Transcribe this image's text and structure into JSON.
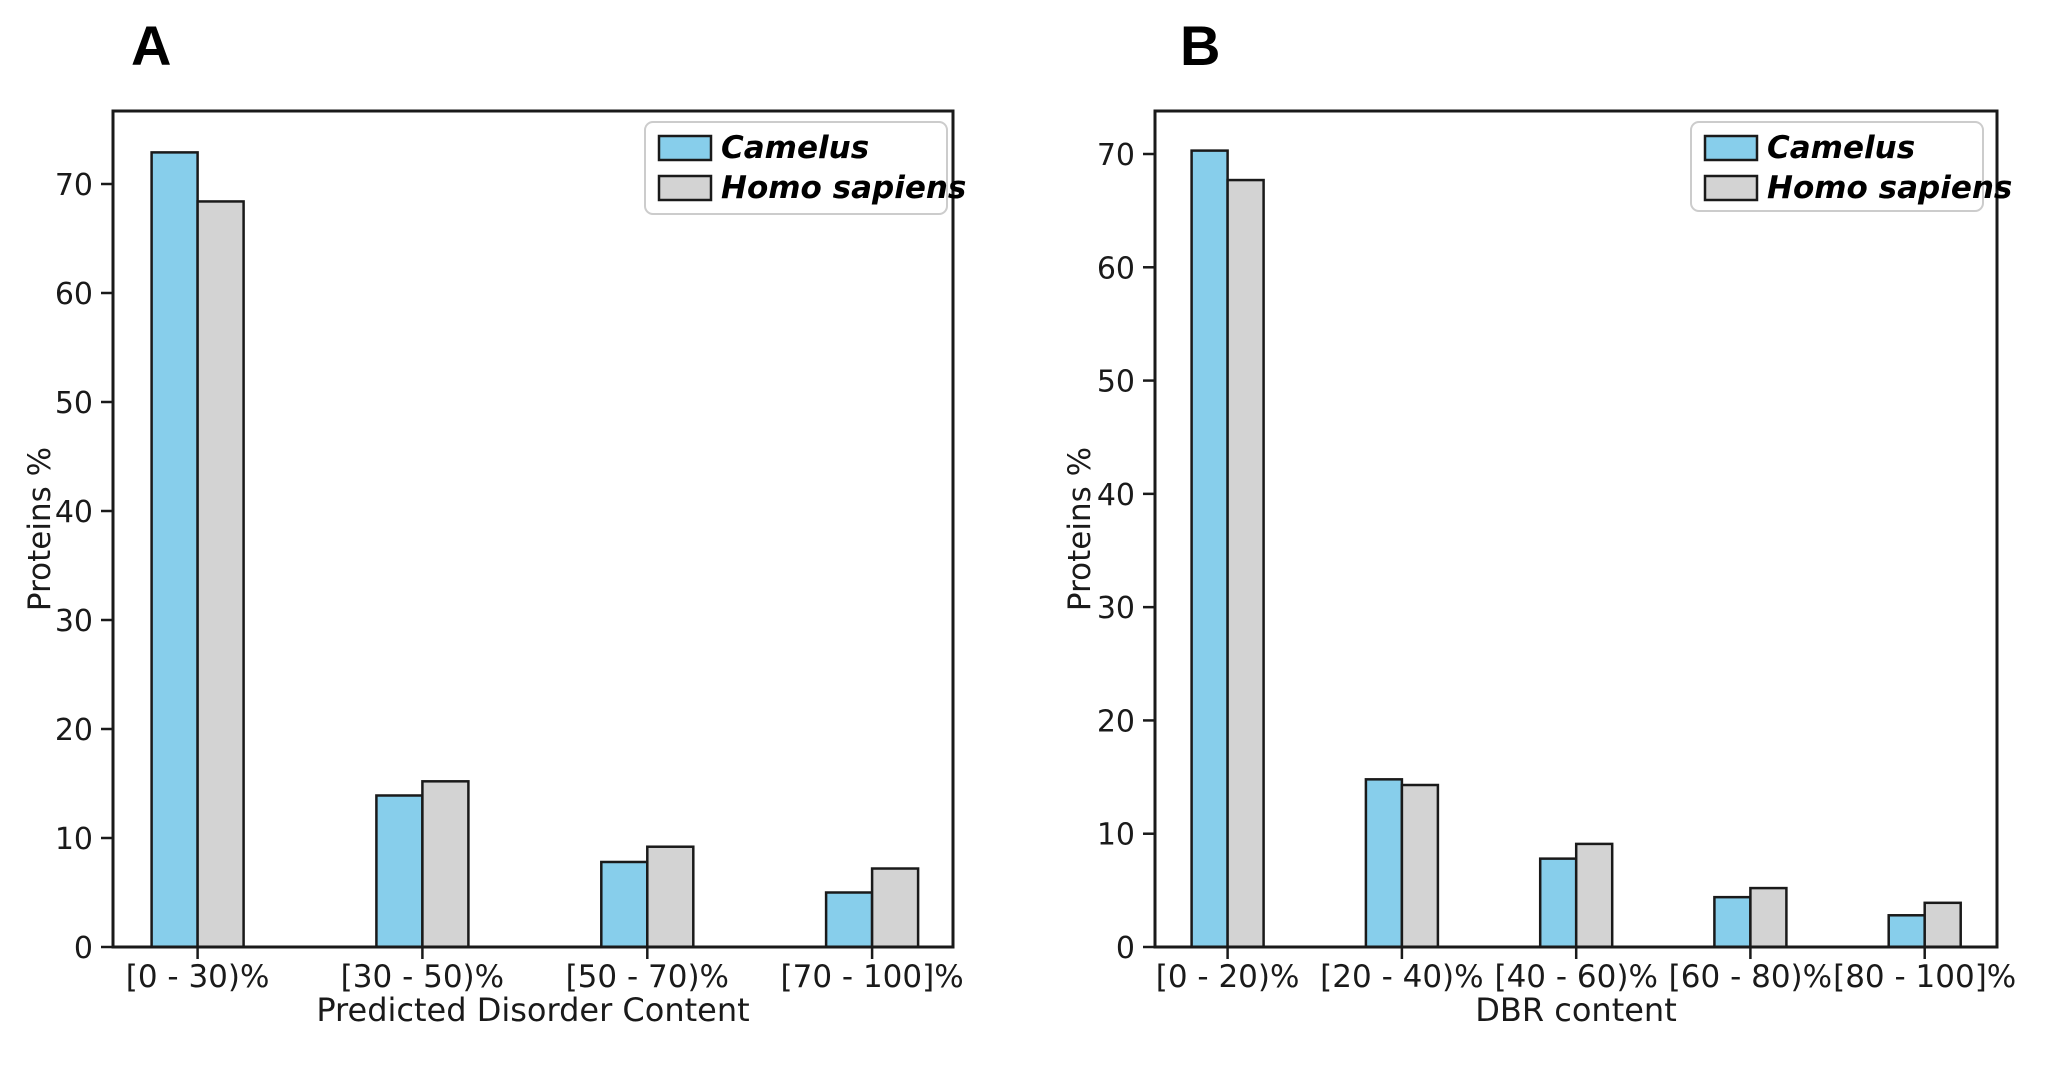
{
  "figure": {
    "background": "#ffffff",
    "text_color": "#1a1a1a",
    "panel_letters": [
      "A",
      "B"
    ]
  },
  "chart_data": [
    {
      "type": "bar",
      "panel_label": "A",
      "title": "",
      "categories": [
        "[0 - 30)%",
        "[30 - 50)%",
        "[50 - 70)%",
        "[70 - 100]%"
      ],
      "series": [
        {
          "name": "Camelus",
          "color": "#87CEEB",
          "edge_color": "#1a1a1a",
          "values": [
            72.9,
            13.9,
            7.8,
            5.0
          ]
        },
        {
          "name": "Homo sapiens",
          "color": "#D3D3D3",
          "edge_color": "#1a1a1a",
          "values": [
            68.4,
            15.2,
            9.2,
            7.2
          ]
        }
      ],
      "xlabel": "Predicted Disorder Content",
      "ylabel": "Proteins %",
      "yticks": [
        0,
        10,
        20,
        30,
        40,
        50,
        60,
        70
      ],
      "ylim": [
        0,
        76.7
      ],
      "grid": false,
      "legend_position": "upper right"
    },
    {
      "type": "bar",
      "panel_label": "B",
      "title": "",
      "categories": [
        "[0 - 20)%",
        "[20 - 40)%",
        "[40 - 60)%",
        "[60 - 80)%",
        "[80 - 100]%"
      ],
      "series": [
        {
          "name": "Camelus",
          "color": "#87CEEB",
          "edge_color": "#1a1a1a",
          "values": [
            70.3,
            14.8,
            7.8,
            4.4,
            2.8
          ]
        },
        {
          "name": "Homo sapiens",
          "color": "#D3D3D3",
          "edge_color": "#1a1a1a",
          "values": [
            67.7,
            14.3,
            9.1,
            5.2,
            3.9
          ]
        }
      ],
      "xlabel": "DBR content",
      "ylabel": "Proteins %",
      "yticks": [
        0,
        10,
        20,
        30,
        40,
        50,
        60,
        70
      ],
      "ylim": [
        0,
        73.9
      ],
      "grid": false,
      "legend_position": "upper right"
    }
  ]
}
